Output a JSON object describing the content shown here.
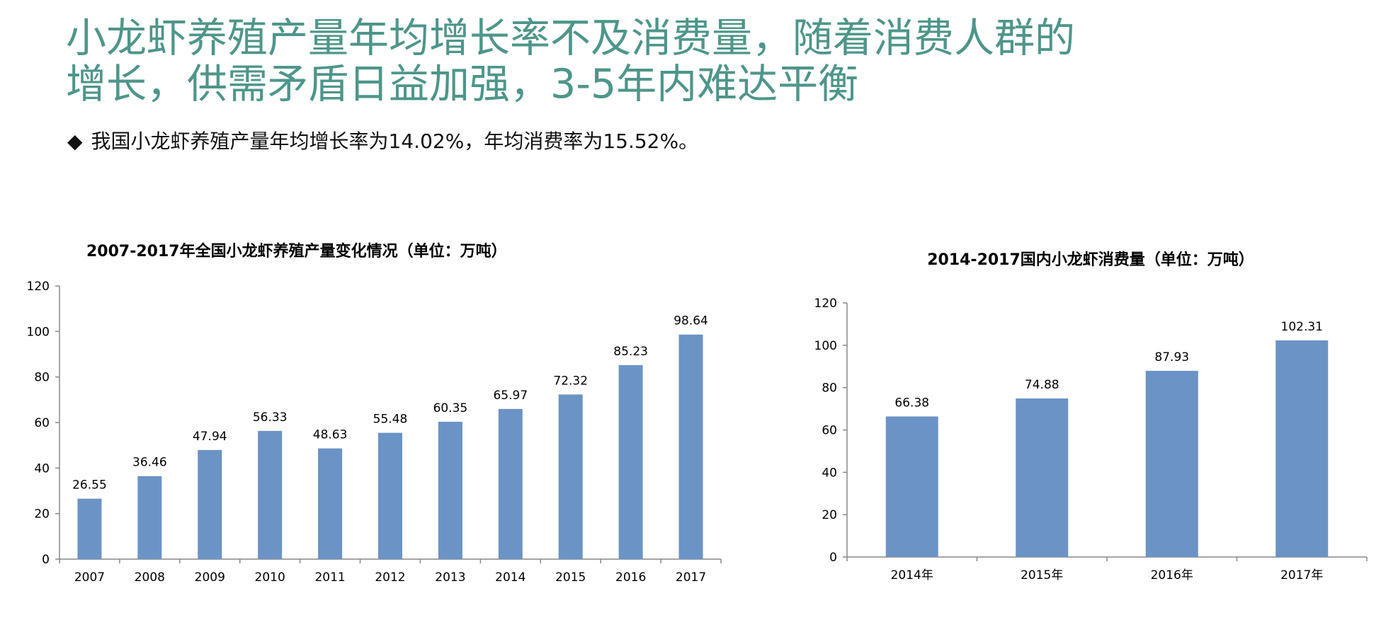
{
  "title": {
    "line1": "小龙虾养殖产量年均增长率不及消费量，随着消费人群的",
    "line2": "增长，供需矛盾日益加强，3-5年内难达平衡"
  },
  "bullet": {
    "mark": "◆",
    "text": "我国小龙虾养殖产量年均增长率为14.02%，年均消费率为15.52%。"
  },
  "colors": {
    "title": "#4e9689",
    "bar": "#6b93c5"
  },
  "chart_data": [
    {
      "type": "bar",
      "title": "2007-2017年全国小龙虾养殖产量变化情况（单位：万吨）",
      "categories": [
        "2007",
        "2008",
        "2009",
        "2010",
        "2011",
        "2012",
        "2013",
        "2014",
        "2015",
        "2016",
        "2017"
      ],
      "values": [
        26.55,
        36.46,
        47.94,
        56.33,
        48.63,
        55.48,
        60.35,
        65.97,
        72.32,
        85.23,
        98.64
      ],
      "value_labels": [
        "26.55",
        "36.46",
        "47.94",
        "56.33",
        "48.63",
        "55.48",
        "60.35",
        "65.97",
        "72.32",
        "85.23",
        "98.64"
      ],
      "ylim": [
        0,
        120
      ],
      "yticks": [
        "0",
        "20",
        "40",
        "60",
        "80",
        "100",
        "120"
      ],
      "grid": false
    },
    {
      "type": "bar",
      "title": "2014-2017国内小龙虾消费量（单位：万吨）",
      "categories": [
        "2014年",
        "2015年",
        "2016年",
        "2017年"
      ],
      "values": [
        66.38,
        74.88,
        87.93,
        102.31
      ],
      "value_labels": [
        "66.38",
        "74.88",
        "87.93",
        "102.31"
      ],
      "ylim": [
        0,
        120
      ],
      "yticks": [
        "0",
        "20",
        "40",
        "60",
        "80",
        "100",
        "120"
      ],
      "grid": false
    }
  ]
}
